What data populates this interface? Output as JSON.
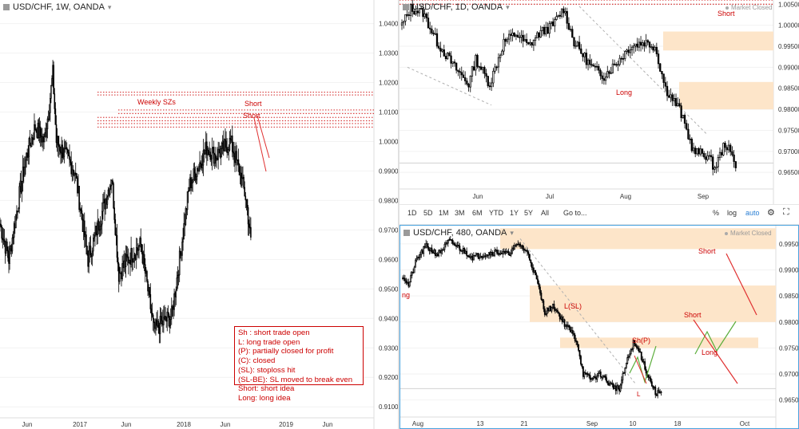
{
  "colors": {
    "bull": "#ffffff",
    "bear": "#000000",
    "wick": "#000000",
    "zone": "#fde5c9",
    "red": "#cc0000",
    "red_line": "#e03030",
    "green": "#5aad3a",
    "grid": "#f2f2f2",
    "axis_text": "#333333",
    "active_border": "#4aa3df"
  },
  "weekly": {
    "title": "USD/CHF, 1W, OANDA",
    "market_status": "",
    "price_ticks": [
      "1.0400",
      "1.0300",
      "1.0200",
      "1.0100",
      "1.0000",
      "0.9900",
      "0.9800",
      "0.9700",
      "0.9600",
      "0.9500",
      "0.9400",
      "0.9300",
      "0.9200",
      "0.9100"
    ],
    "time_ticks": [
      "Jun",
      "2017",
      "Jun",
      "2018",
      "Jun",
      "2019",
      "Jun"
    ],
    "annotations": {
      "zone_label": "Weekly SZs",
      "short1": "Short",
      "short2": "Short"
    },
    "legend": [
      "Sh : short trade open",
      "L: long trade open",
      "(P): partially closed for profit",
      "(C): closed",
      "(SL): stoploss hit",
      "(SL-BE): SL moved to break even",
      "Short: short idea",
      "Long: long idea"
    ]
  },
  "daily": {
    "title": "USD/CHF, 1D, OANDA",
    "market_status": "Market Closed",
    "price_ticks": [
      "1.00500",
      "1.00000",
      "0.99500",
      "0.99000",
      "0.98500",
      "0.98000",
      "0.97500",
      "0.97000",
      "0.96500"
    ],
    "time_ticks": [
      "Jun",
      "Jul",
      "Aug",
      "Sep"
    ],
    "annotations": {
      "short_top": "Short",
      "short_cut": "Short",
      "long": "Long"
    }
  },
  "toolbar": {
    "ranges": [
      "1D",
      "5D",
      "1M",
      "3M",
      "6M",
      "YTD",
      "1Y",
      "5Y",
      "All"
    ],
    "goto": "Go to...",
    "percent": "%",
    "log": "log",
    "auto": "auto",
    "gear_icon": "gear-icon",
    "fullscreen_icon": "fullscreen-icon"
  },
  "h4": {
    "title": "USD/CHF, 480, OANDA",
    "market_status": "Market Closed",
    "price_ticks": [
      "0.99500",
      "0.99000",
      "0.98500",
      "0.98000",
      "0.97500",
      "0.97000",
      "0.96500"
    ],
    "time_ticks": [
      "Aug",
      "13",
      "21",
      "Sep",
      "10",
      "18",
      "Oct"
    ],
    "annotations": {
      "left_cut": "ng",
      "lsl": "L(SL)",
      "shp": "Sh(P)",
      "l": "L",
      "short_right": "Short",
      "short_mid": "Short",
      "long": "Long"
    }
  },
  "chart_data": [
    {
      "type": "candlestick",
      "title": "USD/CHF, 1W, OANDA",
      "ylim": [
        0.906,
        1.048
      ],
      "trend": "range 0.92–1.04; spike near 1.035 early 2017, low ~0.925 early 2018, rally to ~1.005 mid 2018, then decline to ~0.965",
      "zones_in_data_units": [
        [
          1.0049,
          1.0061
        ],
        [
          1.007,
          1.0082
        ],
        [
          1.0095,
          1.0107
        ],
        [
          1.0158,
          1.0167
        ]
      ]
    },
    {
      "type": "candlestick",
      "title": "USD/CHF, 1D, OANDA",
      "ylim": [
        0.962,
        1.006
      ],
      "zones_in_data_units": [
        [
          0.994,
          0.9985
        ],
        [
          0.98,
          0.9865
        ]
      ],
      "short_levels": [
        1.005,
        1.006
      ],
      "trend": "1.04 highs in May falling to 0.988 early June, rally to 1.004 mid July, dip to 0.988 early Aug, range ~0.995, drop to 0.966 late Aug/Sep"
    },
    {
      "type": "candlestick",
      "title": "USD/CHF, 480, OANDA",
      "ylim": [
        0.9625,
        0.9985
      ],
      "zones_in_data_units": [
        [
          0.994,
          0.998
        ],
        [
          0.98,
          0.987
        ],
        [
          0.975,
          0.977
        ]
      ],
      "trend": "~0.993 early Aug declining to ~0.967 early Sep with projected path toward Short zones"
    }
  ]
}
